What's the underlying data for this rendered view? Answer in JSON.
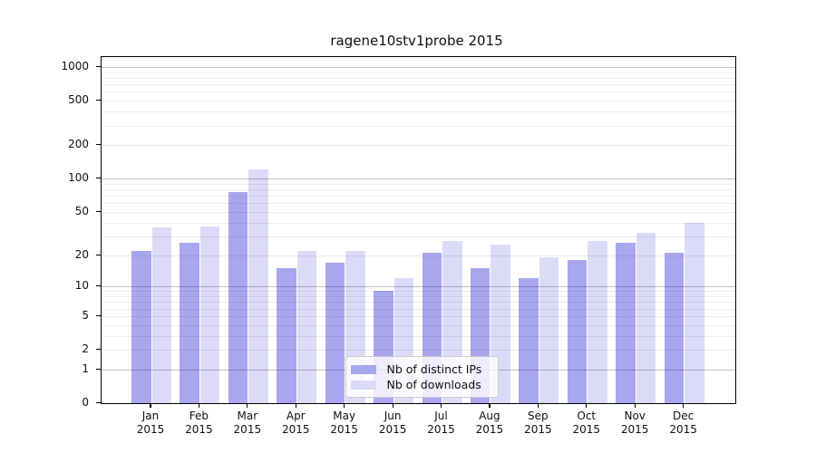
{
  "chart_data": {
    "type": "bar",
    "title": "ragene10stv1probe 2015",
    "categories": [
      "Jan",
      "Feb",
      "Mar",
      "Apr",
      "May",
      "Jun",
      "Jul",
      "Aug",
      "Sep",
      "Oct",
      "Nov",
      "Dec"
    ],
    "year_label": "2015",
    "series": [
      {
        "name": "Nb of distinct IPs",
        "color": "#a7a7f0",
        "values": [
          22,
          26,
          75,
          15,
          17,
          9,
          21,
          15,
          12,
          18,
          26,
          21
        ]
      },
      {
        "name": "Nb of downloads",
        "color": "#dbdbf8",
        "values": [
          36,
          37,
          120,
          22,
          22,
          12,
          27,
          25,
          19,
          27,
          32,
          40
        ]
      }
    ],
    "yscale": "log10(1+x)",
    "ylim": [
      0,
      1228
    ],
    "yticks": [
      0,
      1,
      2,
      5,
      10,
      20,
      50,
      100,
      200,
      500,
      1000
    ],
    "grid_major": [
      1,
      10,
      100,
      1000
    ],
    "grid_minor": [
      2,
      3,
      4,
      5,
      6,
      7,
      8,
      9,
      20,
      30,
      40,
      50,
      60,
      70,
      80,
      90,
      200,
      300,
      400,
      500,
      600,
      700,
      800,
      900
    ],
    "legend_position": "bottom-center",
    "xlabel": "",
    "ylabel": ""
  }
}
